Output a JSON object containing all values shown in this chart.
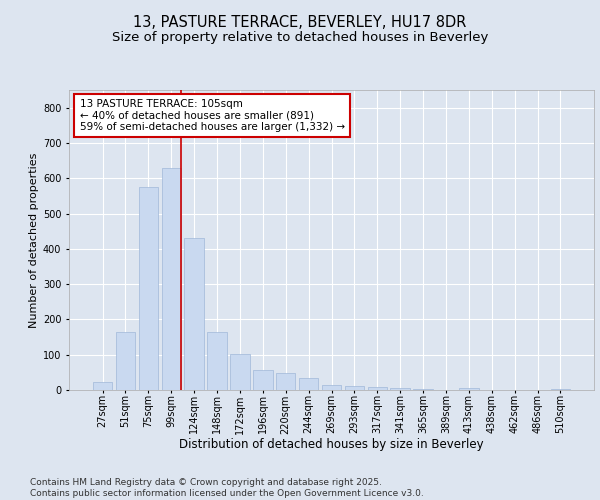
{
  "title1": "13, PASTURE TERRACE, BEVERLEY, HU17 8DR",
  "title2": "Size of property relative to detached houses in Beverley",
  "xlabel": "Distribution of detached houses by size in Beverley",
  "ylabel": "Number of detached properties",
  "bin_labels": [
    "27sqm",
    "51sqm",
    "75sqm",
    "99sqm",
    "124sqm",
    "148sqm",
    "172sqm",
    "196sqm",
    "220sqm",
    "244sqm",
    "269sqm",
    "293sqm",
    "317sqm",
    "341sqm",
    "365sqm",
    "389sqm",
    "413sqm",
    "438sqm",
    "462sqm",
    "486sqm",
    "510sqm"
  ],
  "bar_heights": [
    22,
    165,
    575,
    630,
    430,
    165,
    102,
    58,
    48,
    35,
    15,
    12,
    8,
    5,
    3,
    0,
    5,
    0,
    0,
    0,
    3
  ],
  "bar_color": "#c9d9f0",
  "bar_edge_color": "#a0b8d8",
  "vline_x_index": 3.42,
  "vline_color": "#cc0000",
  "annotation_text": "13 PASTURE TERRACE: 105sqm\n← 40% of detached houses are smaller (891)\n59% of semi-detached houses are larger (1,332) →",
  "annotation_box_color": "#ffffff",
  "annotation_box_edge_color": "#cc0000",
  "ylim": [
    0,
    850
  ],
  "yticks": [
    0,
    100,
    200,
    300,
    400,
    500,
    600,
    700,
    800
  ],
  "bg_color": "#dde5f0",
  "plot_bg_color": "#dde5f0",
  "footer_text": "Contains HM Land Registry data © Crown copyright and database right 2025.\nContains public sector information licensed under the Open Government Licence v3.0.",
  "title1_fontsize": 10.5,
  "title2_fontsize": 9.5,
  "xlabel_fontsize": 8.5,
  "ylabel_fontsize": 8,
  "tick_fontsize": 7,
  "footer_fontsize": 6.5,
  "annot_fontsize": 7.5
}
